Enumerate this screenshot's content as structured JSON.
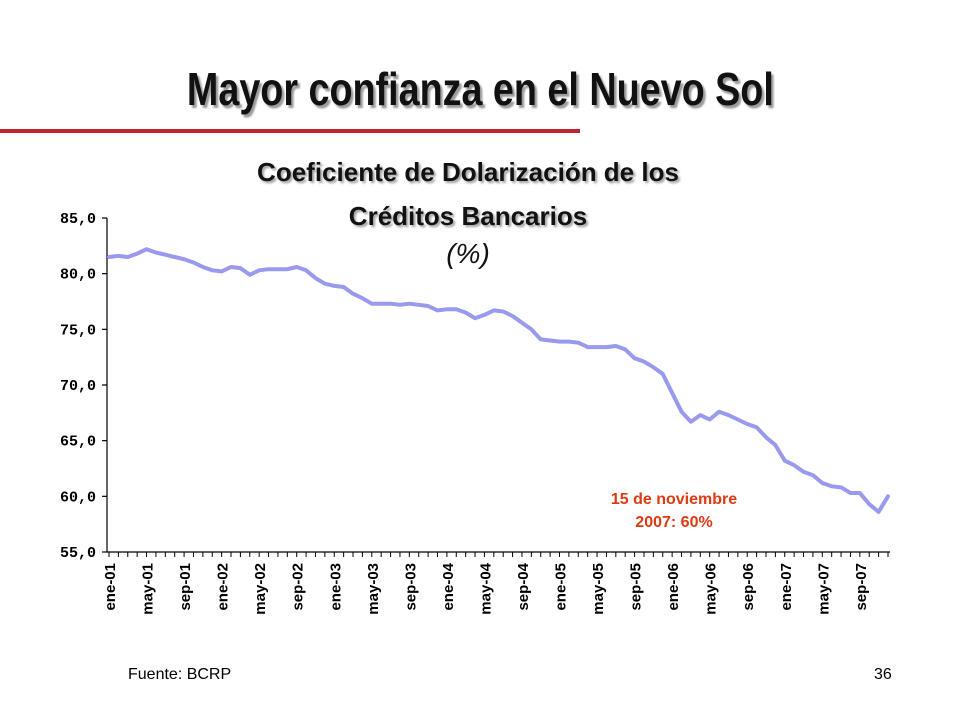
{
  "slide": {
    "title": "Mayor confianza en el Nuevo Sol",
    "rule_color": "#c0242e",
    "footer": "Fuente: BCRP",
    "page_number": "36"
  },
  "chart_data": {
    "type": "line",
    "title": "Coeficiente de Dolarización de los",
    "title_line2": "Créditos Bancarios",
    "unit": "(%)",
    "xlabel": "",
    "ylabel": "",
    "ylim": [
      55,
      85
    ],
    "yticks": [
      55,
      60,
      65,
      70,
      75,
      80,
      85
    ],
    "ytick_labels": [
      "55,0",
      "60,0",
      "65,0",
      "70,0",
      "75,0",
      "80,0",
      "85,0"
    ],
    "x_tick_labels": [
      "ene-01",
      "may-01",
      "sep-01",
      "ene-02",
      "may-02",
      "sep-02",
      "ene-03",
      "may-03",
      "sep-03",
      "ene-04",
      "may-04",
      "sep-04",
      "ene-05",
      "may-05",
      "sep-05",
      "ene-06",
      "may-06",
      "sep-06",
      "ene-07",
      "may-07",
      "sep-07"
    ],
    "grid": false,
    "series": [
      {
        "color": "#9999ee",
        "values": [
          81.5,
          81.6,
          81.5,
          81.8,
          82.2,
          81.9,
          81.7,
          81.5,
          81.3,
          81.0,
          80.6,
          80.3,
          80.2,
          80.6,
          80.5,
          79.9,
          80.3,
          80.4,
          80.4,
          80.4,
          80.6,
          80.3,
          79.6,
          79.1,
          78.9,
          78.8,
          78.2,
          77.8,
          77.3,
          77.3,
          77.3,
          77.2,
          77.3,
          77.2,
          77.1,
          76.7,
          76.8,
          76.8,
          76.5,
          76.0,
          76.3,
          76.7,
          76.6,
          76.2,
          75.6,
          75.0,
          74.1,
          74.0,
          73.9,
          73.9,
          73.8,
          73.4,
          73.4,
          73.4,
          73.5,
          73.2,
          72.4,
          72.1,
          71.6,
          71.0,
          69.3,
          67.6,
          66.7,
          67.3,
          66.9,
          67.6,
          67.3,
          66.9,
          66.5,
          66.2,
          65.3,
          64.6,
          63.2,
          62.8,
          62.2,
          61.9,
          61.2,
          60.9,
          60.8,
          60.3,
          60.3,
          59.3,
          58.6,
          60.0
        ]
      }
    ],
    "annotation": {
      "line1": "15 de noviembre",
      "line2": "2007: 60%",
      "color": "#dd3a12"
    }
  }
}
